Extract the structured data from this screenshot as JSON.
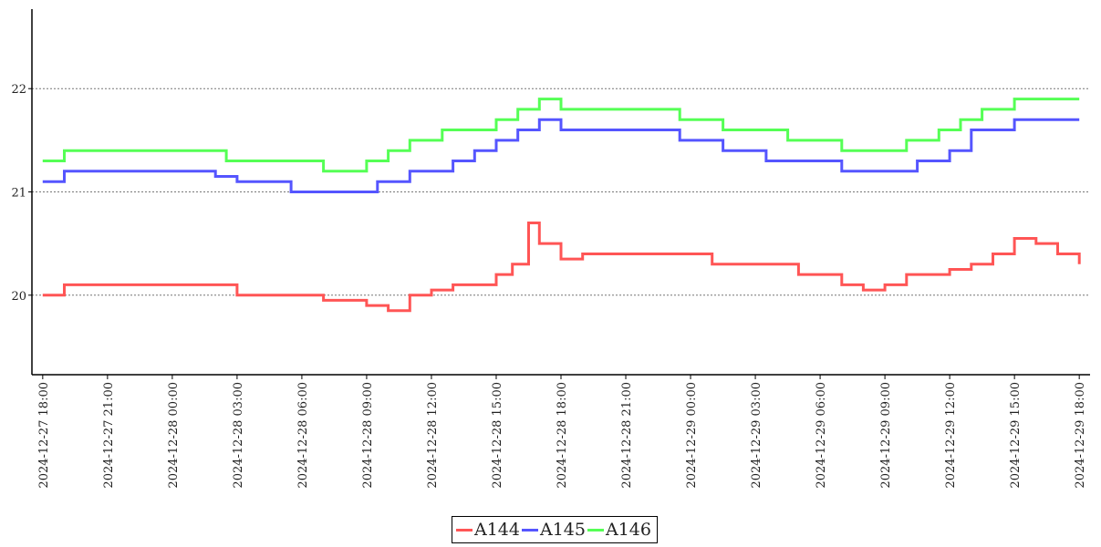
{
  "chart_data": {
    "type": "line",
    "title": "",
    "xlabel": "",
    "ylabel": "",
    "x_ticks": [
      "2024-12-27 18:00",
      "2024-12-27 21:00",
      "2024-12-28 00:00",
      "2024-12-28 03:00",
      "2024-12-28 06:00",
      "2024-12-28 09:00",
      "2024-12-28 12:00",
      "2024-12-28 15:00",
      "2024-12-28 18:00",
      "2024-12-28 21:00",
      "2024-12-29 00:00",
      "2024-12-29 03:00",
      "2024-12-29 06:00",
      "2024-12-29 09:00",
      "2024-12-29 12:00",
      "2024-12-29 15:00",
      "2024-12-29 18:00"
    ],
    "xlim": [
      "2024-12-27 17:30",
      "2024-12-29 18:30"
    ],
    "y_ticks": [
      20,
      21,
      22
    ],
    "ylim": [
      19.23,
      22.77
    ],
    "grid": "horizontal dotted",
    "legend_position": "bottom-center",
    "series": [
      {
        "name": "A144",
        "color": "#ff5555",
        "points": [
          [
            "2024-12-27 18:00",
            20.0
          ],
          [
            "2024-12-27 19:00",
            20.1
          ],
          [
            "2024-12-27 21:00",
            20.1
          ],
          [
            "2024-12-28 00:00",
            20.1
          ],
          [
            "2024-12-28 02:00",
            20.1
          ],
          [
            "2024-12-28 03:00",
            20.0
          ],
          [
            "2024-12-28 06:00",
            20.0
          ],
          [
            "2024-12-28 07:00",
            19.95
          ],
          [
            "2024-12-28 09:00",
            19.9
          ],
          [
            "2024-12-28 10:00",
            19.85
          ],
          [
            "2024-12-28 11:00",
            20.0
          ],
          [
            "2024-12-28 12:00",
            20.05
          ],
          [
            "2024-12-28 13:00",
            20.1
          ],
          [
            "2024-12-28 14:00",
            20.1
          ],
          [
            "2024-12-28 15:00",
            20.2
          ],
          [
            "2024-12-28 15:45",
            20.3
          ],
          [
            "2024-12-28 16:30",
            20.7
          ],
          [
            "2024-12-28 17:00",
            20.5
          ],
          [
            "2024-12-28 18:00",
            20.35
          ],
          [
            "2024-12-28 19:00",
            20.4
          ],
          [
            "2024-12-28 21:00",
            20.4
          ],
          [
            "2024-12-28 23:00",
            20.4
          ],
          [
            "2024-12-29 00:00",
            20.4
          ],
          [
            "2024-12-29 01:00",
            20.3
          ],
          [
            "2024-12-29 03:00",
            20.3
          ],
          [
            "2024-12-29 05:00",
            20.2
          ],
          [
            "2024-12-29 06:00",
            20.2
          ],
          [
            "2024-12-29 07:00",
            20.1
          ],
          [
            "2024-12-29 08:00",
            20.05
          ],
          [
            "2024-12-29 09:00",
            20.1
          ],
          [
            "2024-12-29 10:00",
            20.2
          ],
          [
            "2024-12-29 12:00",
            20.25
          ],
          [
            "2024-12-29 13:00",
            20.3
          ],
          [
            "2024-12-29 14:00",
            20.4
          ],
          [
            "2024-12-29 15:00",
            20.55
          ],
          [
            "2024-12-29 16:00",
            20.5
          ],
          [
            "2024-12-29 17:00",
            20.4
          ],
          [
            "2024-12-29 18:00",
            20.3
          ]
        ]
      },
      {
        "name": "A145",
        "color": "#5555ff",
        "points": [
          [
            "2024-12-27 18:00",
            21.1
          ],
          [
            "2024-12-27 19:00",
            21.2
          ],
          [
            "2024-12-27 21:00",
            21.2
          ],
          [
            "2024-12-28 00:00",
            21.2
          ],
          [
            "2024-12-28 02:00",
            21.15
          ],
          [
            "2024-12-28 03:00",
            21.1
          ],
          [
            "2024-12-28 05:00",
            21.1
          ],
          [
            "2024-12-28 05:30",
            21.0
          ],
          [
            "2024-12-28 09:00",
            21.0
          ],
          [
            "2024-12-28 09:30",
            21.1
          ],
          [
            "2024-12-28 11:00",
            21.2
          ],
          [
            "2024-12-28 13:00",
            21.3
          ],
          [
            "2024-12-28 14:00",
            21.4
          ],
          [
            "2024-12-28 15:00",
            21.5
          ],
          [
            "2024-12-28 16:00",
            21.6
          ],
          [
            "2024-12-28 17:00",
            21.7
          ],
          [
            "2024-12-28 18:00",
            21.6
          ],
          [
            "2024-12-28 21:00",
            21.6
          ],
          [
            "2024-12-28 23:00",
            21.6
          ],
          [
            "2024-12-28 23:30",
            21.5
          ],
          [
            "2024-12-29 01:00",
            21.5
          ],
          [
            "2024-12-29 01:30",
            21.4
          ],
          [
            "2024-12-29 03:00",
            21.4
          ],
          [
            "2024-12-29 03:30",
            21.3
          ],
          [
            "2024-12-29 06:30",
            21.3
          ],
          [
            "2024-12-29 07:00",
            21.2
          ],
          [
            "2024-12-29 10:00",
            21.2
          ],
          [
            "2024-12-29 10:30",
            21.3
          ],
          [
            "2024-12-29 12:00",
            21.4
          ],
          [
            "2024-12-29 13:00",
            21.6
          ],
          [
            "2024-12-29 15:00",
            21.7
          ],
          [
            "2024-12-29 18:00",
            21.7
          ]
        ]
      },
      {
        "name": "A146",
        "color": "#55ff55",
        "points": [
          [
            "2024-12-27 18:00",
            21.3
          ],
          [
            "2024-12-27 19:00",
            21.4
          ],
          [
            "2024-12-27 21:00",
            21.4
          ],
          [
            "2024-12-28 00:00",
            21.4
          ],
          [
            "2024-12-28 02:00",
            21.4
          ],
          [
            "2024-12-28 02:30",
            21.3
          ],
          [
            "2024-12-28 05:30",
            21.3
          ],
          [
            "2024-12-28 07:00",
            21.2
          ],
          [
            "2024-12-28 09:00",
            21.3
          ],
          [
            "2024-12-28 10:00",
            21.4
          ],
          [
            "2024-12-28 11:00",
            21.5
          ],
          [
            "2024-12-28 12:30",
            21.6
          ],
          [
            "2024-12-28 14:00",
            21.6
          ],
          [
            "2024-12-28 15:00",
            21.7
          ],
          [
            "2024-12-28 16:00",
            21.8
          ],
          [
            "2024-12-28 17:00",
            21.9
          ],
          [
            "2024-12-28 18:00",
            21.8
          ],
          [
            "2024-12-28 21:00",
            21.8
          ],
          [
            "2024-12-28 23:00",
            21.8
          ],
          [
            "2024-12-28 23:30",
            21.7
          ],
          [
            "2024-12-29 01:00",
            21.7
          ],
          [
            "2024-12-29 01:30",
            21.6
          ],
          [
            "2024-12-29 04:00",
            21.6
          ],
          [
            "2024-12-29 04:30",
            21.5
          ],
          [
            "2024-12-29 06:30",
            21.5
          ],
          [
            "2024-12-29 07:00",
            21.4
          ],
          [
            "2024-12-29 09:00",
            21.4
          ],
          [
            "2024-12-29 10:00",
            21.5
          ],
          [
            "2024-12-29 11:30",
            21.6
          ],
          [
            "2024-12-29 12:30",
            21.7
          ],
          [
            "2024-12-29 13:30",
            21.8
          ],
          [
            "2024-12-29 15:00",
            21.9
          ],
          [
            "2024-12-29 18:00",
            21.9
          ]
        ]
      }
    ]
  }
}
